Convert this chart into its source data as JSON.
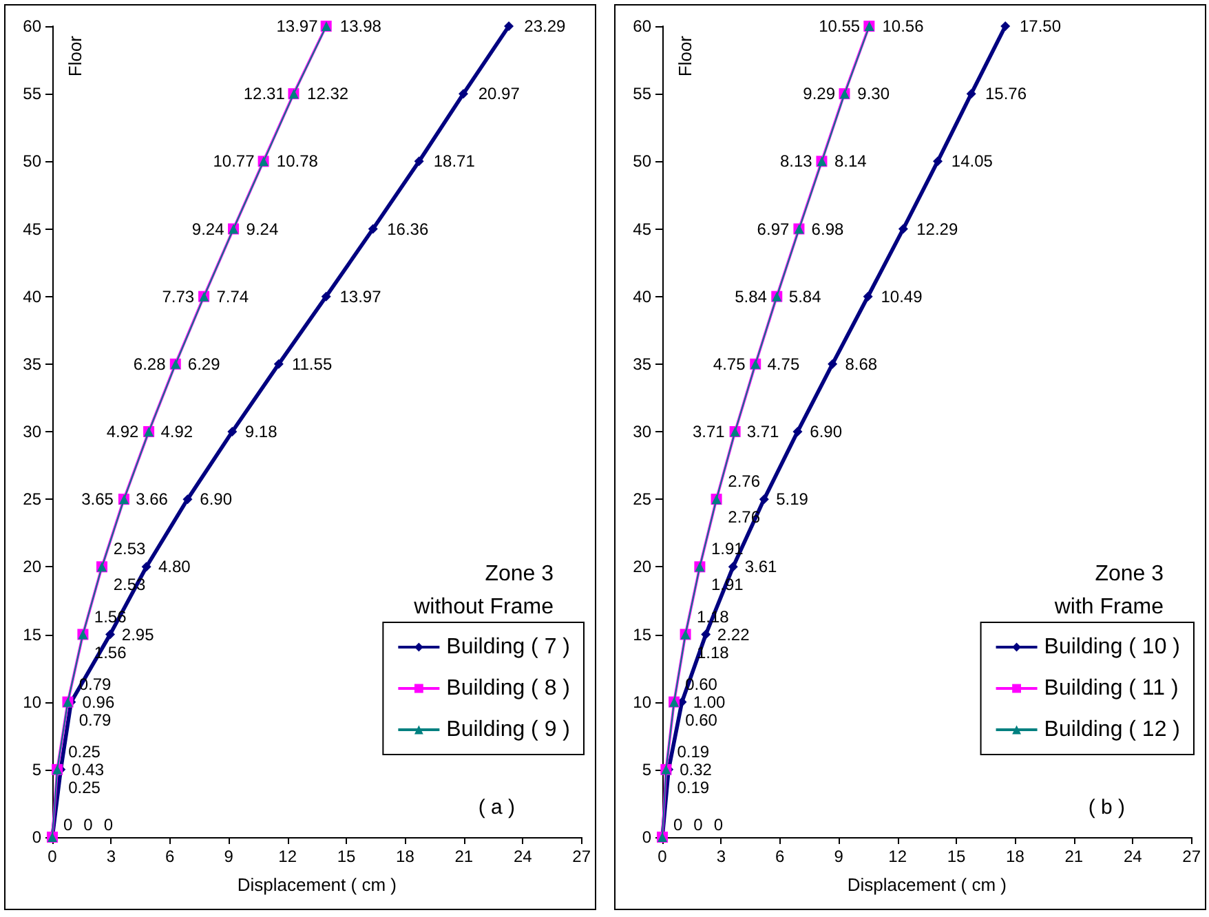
{
  "chart_data": [
    {
      "type": "line",
      "orientation": "horizontal",
      "xlabel": "Displacement ( cm )",
      "ylabel": "Floor",
      "xlim": [
        0,
        27
      ],
      "xticks": [
        0,
        3,
        6,
        9,
        12,
        15,
        18,
        21,
        24,
        27
      ],
      "ylim": [
        0,
        60
      ],
      "yticks": [
        0,
        5,
        10,
        15,
        20,
        25,
        30,
        35,
        40,
        45,
        50,
        55,
        60
      ],
      "grid": false,
      "legend": "bottom right",
      "line_style": "solid",
      "data_labels": true,
      "annotations": [
        "Zone 3",
        "without Frame",
        "( a )"
      ],
      "series": [
        {
          "name": "Building ( 7 )",
          "color": "#000080",
          "marker": "diamond",
          "x": [
            0,
            5,
            10,
            15,
            20,
            25,
            30,
            35,
            40,
            45,
            50,
            55,
            60
          ],
          "values": [
            0,
            0.43,
            0.96,
            2.95,
            4.8,
            6.9,
            9.18,
            11.55,
            13.97,
            16.36,
            18.71,
            20.97,
            23.29
          ],
          "value_labels": [
            "0",
            "0.43",
            "0.96",
            "2.95",
            "4.80",
            "6.90",
            "9.18",
            "11.55",
            "13.97",
            "16.36",
            "18.71",
            "20.97",
            "23.29"
          ]
        },
        {
          "name": "Building ( 8 )",
          "color": "#ff00ff",
          "marker": "square",
          "x": [
            0,
            5,
            10,
            15,
            20,
            25,
            30,
            35,
            40,
            45,
            50,
            55,
            60
          ],
          "values": [
            0,
            0.25,
            0.79,
            1.56,
            2.53,
            3.65,
            4.92,
            6.28,
            7.73,
            9.24,
            10.77,
            12.31,
            13.97
          ],
          "value_labels": [
            "0",
            "0.25",
            "0.79",
            "1.56",
            "2.53",
            "3.65",
            "4.92",
            "6.28",
            "7.73",
            "9.24",
            "10.77",
            "12.31",
            "13.97"
          ]
        },
        {
          "name": "Building ( 9 )",
          "color": "#008080",
          "marker": "triangle",
          "x": [
            0,
            5,
            10,
            15,
            20,
            25,
            30,
            35,
            40,
            45,
            50,
            55,
            60
          ],
          "values": [
            0,
            0.25,
            0.79,
            1.56,
            2.53,
            3.66,
            4.92,
            6.29,
            7.74,
            9.24,
            10.78,
            12.32,
            13.98
          ],
          "value_labels": [
            "0",
            "0.25",
            "0.79",
            "1.56",
            "2.53",
            "3.66",
            "4.92",
            "6.29",
            "7.74",
            "9.24",
            "10.78",
            "12.32",
            "13.98"
          ]
        }
      ]
    },
    {
      "type": "line",
      "orientation": "horizontal",
      "xlabel": "Displacement ( cm )",
      "ylabel": "Floor",
      "xlim": [
        0,
        27
      ],
      "xticks": [
        0,
        3,
        6,
        9,
        12,
        15,
        18,
        21,
        24,
        27
      ],
      "ylim": [
        0,
        60
      ],
      "yticks": [
        0,
        5,
        10,
        15,
        20,
        25,
        30,
        35,
        40,
        45,
        50,
        55,
        60
      ],
      "grid": false,
      "legend": "bottom right",
      "line_style": "solid",
      "data_labels": true,
      "annotations": [
        "Zone 3",
        "with Frame",
        "( b )"
      ],
      "series": [
        {
          "name": "Building ( 10 )",
          "color": "#000080",
          "marker": "diamond",
          "x": [
            0,
            5,
            10,
            15,
            20,
            25,
            30,
            35,
            40,
            45,
            50,
            55,
            60
          ],
          "values": [
            0,
            0.32,
            1.0,
            2.22,
            3.61,
            5.19,
            6.9,
            8.68,
            10.49,
            12.29,
            14.05,
            15.76,
            17.5
          ],
          "value_labels": [
            "0",
            "0.32",
            "1.00",
            "2.22",
            "3.61",
            "5.19",
            "6.90",
            "8.68",
            "10.49",
            "12.29",
            "14.05",
            "15.76",
            "17.50"
          ]
        },
        {
          "name": "Building ( 11 )",
          "color": "#ff00ff",
          "marker": "square",
          "x": [
            0,
            5,
            10,
            15,
            20,
            25,
            30,
            35,
            40,
            45,
            50,
            55,
            60
          ],
          "values": [
            0,
            0.19,
            0.6,
            1.18,
            1.91,
            2.76,
            3.71,
            4.75,
            5.84,
            6.97,
            8.13,
            9.29,
            10.55
          ],
          "value_labels": [
            "0",
            "0.19",
            "0.60",
            "1.18",
            "1.91",
            "2.76",
            "3.71",
            "4.75",
            "5.84",
            "6.97",
            "8.13",
            "9.29",
            "10.55"
          ]
        },
        {
          "name": "Building ( 12 )",
          "color": "#008080",
          "marker": "triangle",
          "x": [
            0,
            5,
            10,
            15,
            20,
            25,
            30,
            35,
            40,
            45,
            50,
            55,
            60
          ],
          "values": [
            0,
            0.19,
            0.6,
            1.18,
            1.91,
            2.76,
            3.71,
            4.75,
            5.84,
            6.98,
            8.14,
            9.3,
            10.56
          ],
          "value_labels": [
            "0",
            "0.19",
            "0.60",
            "1.18",
            "1.91",
            "2.76",
            "3.71",
            "4.75",
            "5.84",
            "6.98",
            "8.14",
            "9.30",
            "10.56"
          ]
        }
      ]
    }
  ]
}
